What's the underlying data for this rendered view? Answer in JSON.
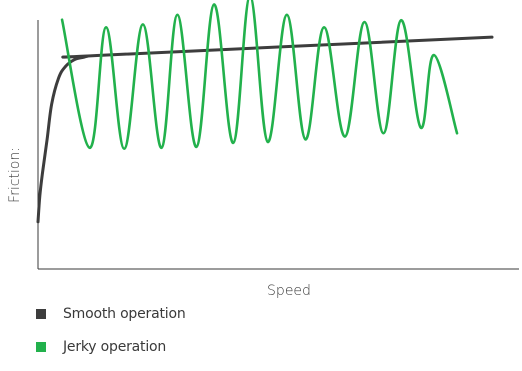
{
  "chart_data": {
    "type": "line",
    "title": "",
    "xlabel": "Speed",
    "ylabel": "Friction:",
    "xlim": [
      0,
      100
    ],
    "ylim": [
      0,
      100
    ],
    "grid": false,
    "legend_placement": "bottom-left",
    "axis_color": "#3a3a3a",
    "series": [
      {
        "name": "Smooth operation",
        "color": "#3d3d3d",
        "x": [
          0,
          0.4,
          1,
          2,
          3,
          4.5,
          6,
          8,
          10,
          11,
          13,
          100
        ],
        "y": [
          9,
          20,
          30,
          44,
          59,
          70,
          75,
          78,
          79,
          79.5,
          79.8,
          87.6
        ]
      },
      {
        "name": "Jerky operation",
        "color": "#22b14c",
        "x": [
          5.3,
          11.4,
          15.0,
          19.0,
          23.1,
          27.2,
          30.7,
          34.9,
          38.8,
          43.0,
          46.7,
          50.6,
          54.8,
          58.9,
          63.0,
          67.6,
          71.9,
          76.1,
          80.0,
          84.3,
          87.2,
          92.3
        ],
        "y": [
          95.0,
          40.5,
          91.8,
          40.1,
          93.0,
          40.5,
          97.1,
          40.9,
          101.5,
          42.6,
          105.0,
          43.0,
          97.1,
          44.1,
          91.8,
          45.3,
          94.0,
          46.7,
          94.8,
          49.1,
          80.0,
          46.7
        ]
      }
    ]
  }
}
